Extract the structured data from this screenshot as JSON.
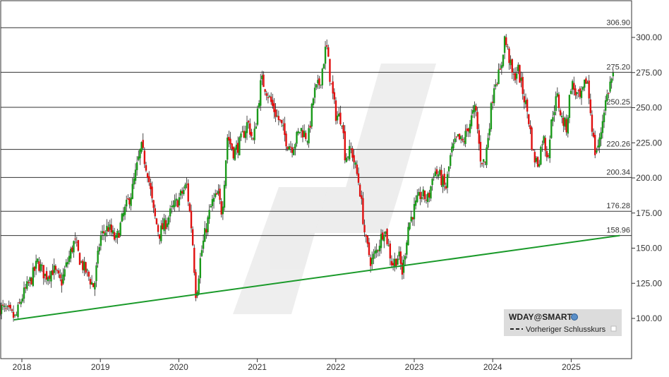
{
  "chart_data": {
    "type": "candlestick",
    "symbol": "WDAY@SMART",
    "legend": {
      "title": "WDAY@SMART",
      "items": [
        {
          "label": "Vorheriger Schlusskurs",
          "style": "dashed"
        }
      ],
      "placement": "bottom-right"
    },
    "x_ticks": [
      "2018",
      "2019",
      "2020",
      "2021",
      "2022",
      "2023",
      "2024",
      "2025"
    ],
    "y_ticks": [
      "100.00",
      "125.00",
      "150.00",
      "175.00",
      "200.00",
      "225.00",
      "250.00",
      "275.00",
      "300.00"
    ],
    "ylim": [
      76,
      318
    ],
    "xlim": [
      2017.72,
      2025.8
    ],
    "grid": false,
    "horizontal_levels": [
      {
        "value": 306.9,
        "label": "306.90"
      },
      {
        "value": 275.2,
        "label": "275.20"
      },
      {
        "value": 250.25,
        "label": "250.25"
      },
      {
        "value": 220.26,
        "label": "220.26"
      },
      {
        "value": 200.34,
        "label": "200.34"
      },
      {
        "value": 176.28,
        "label": "176.28"
      },
      {
        "value": 158.96,
        "label": "158.96"
      }
    ],
    "trendline": {
      "x": [
        2017.9,
        2025.62
      ],
      "y": [
        99,
        159
      ]
    },
    "colors": {
      "up": "#1a9a1a",
      "down": "#e01010",
      "trend": "#1a9a2a",
      "level": "#333333"
    },
    "close_path": [
      [
        2017.72,
        108
      ],
      [
        2017.83,
        104
      ],
      [
        2017.92,
        100
      ],
      [
        2018.0,
        115
      ],
      [
        2018.12,
        128
      ],
      [
        2018.2,
        140
      ],
      [
        2018.3,
        130
      ],
      [
        2018.4,
        135
      ],
      [
        2018.5,
        125
      ],
      [
        2018.58,
        140
      ],
      [
        2018.67,
        155
      ],
      [
        2018.75,
        140
      ],
      [
        2018.85,
        130
      ],
      [
        2018.92,
        122
      ],
      [
        2019.0,
        158
      ],
      [
        2019.1,
        165
      ],
      [
        2019.2,
        155
      ],
      [
        2019.3,
        175
      ],
      [
        2019.4,
        190
      ],
      [
        2019.52,
        222
      ],
      [
        2019.6,
        205
      ],
      [
        2019.68,
        175
      ],
      [
        2019.75,
        160
      ],
      [
        2019.85,
        170
      ],
      [
        2019.92,
        178
      ],
      [
        2020.0,
        185
      ],
      [
        2020.1,
        195
      ],
      [
        2020.17,
        160
      ],
      [
        2020.22,
        115
      ],
      [
        2020.28,
        145
      ],
      [
        2020.35,
        165
      ],
      [
        2020.42,
        182
      ],
      [
        2020.5,
        188
      ],
      [
        2020.55,
        175
      ],
      [
        2020.62,
        230
      ],
      [
        2020.7,
        218
      ],
      [
        2020.78,
        225
      ],
      [
        2020.88,
        240
      ],
      [
        2020.95,
        225
      ],
      [
        2021.05,
        270
      ],
      [
        2021.1,
        265
      ],
      [
        2021.2,
        250
      ],
      [
        2021.3,
        238
      ],
      [
        2021.38,
        225
      ],
      [
        2021.45,
        222
      ],
      [
        2021.55,
        235
      ],
      [
        2021.65,
        228
      ],
      [
        2021.72,
        260
      ],
      [
        2021.8,
        268
      ],
      [
        2021.88,
        295
      ],
      [
        2021.93,
        270
      ],
      [
        2022.0,
        245
      ],
      [
        2022.08,
        242
      ],
      [
        2022.12,
        215
      ],
      [
        2022.2,
        220
      ],
      [
        2022.3,
        195
      ],
      [
        2022.38,
        155
      ],
      [
        2022.45,
        140
      ],
      [
        2022.52,
        148
      ],
      [
        2022.62,
        165
      ],
      [
        2022.72,
        138
      ],
      [
        2022.8,
        145
      ],
      [
        2022.85,
        132
      ],
      [
        2022.92,
        165
      ],
      [
        2023.0,
        178
      ],
      [
        2023.08,
        188
      ],
      [
        2023.18,
        185
      ],
      [
        2023.25,
        205
      ],
      [
        2023.32,
        202
      ],
      [
        2023.4,
        192
      ],
      [
        2023.47,
        218
      ],
      [
        2023.55,
        228
      ],
      [
        2023.62,
        225
      ],
      [
        2023.7,
        238
      ],
      [
        2023.78,
        250
      ],
      [
        2023.84,
        215
      ],
      [
        2023.9,
        210
      ],
      [
        2023.96,
        240
      ],
      [
        2024.02,
        268
      ],
      [
        2024.1,
        275
      ],
      [
        2024.15,
        300
      ],
      [
        2024.2,
        288
      ],
      [
        2024.26,
        270
      ],
      [
        2024.32,
        278
      ],
      [
        2024.38,
        262
      ],
      [
        2024.45,
        245
      ],
      [
        2024.52,
        215
      ],
      [
        2024.58,
        210
      ],
      [
        2024.64,
        230
      ],
      [
        2024.7,
        215
      ],
      [
        2024.76,
        245
      ],
      [
        2024.82,
        258
      ],
      [
        2024.88,
        242
      ],
      [
        2024.94,
        236
      ],
      [
        2025.0,
        268
      ],
      [
        2025.06,
        260
      ],
      [
        2025.12,
        255
      ],
      [
        2025.2,
        272
      ],
      [
        2025.26,
        240
      ],
      [
        2025.3,
        218
      ],
      [
        2025.36,
        225
      ],
      [
        2025.42,
        250
      ],
      [
        2025.5,
        268
      ],
      [
        2025.55,
        275
      ]
    ]
  }
}
